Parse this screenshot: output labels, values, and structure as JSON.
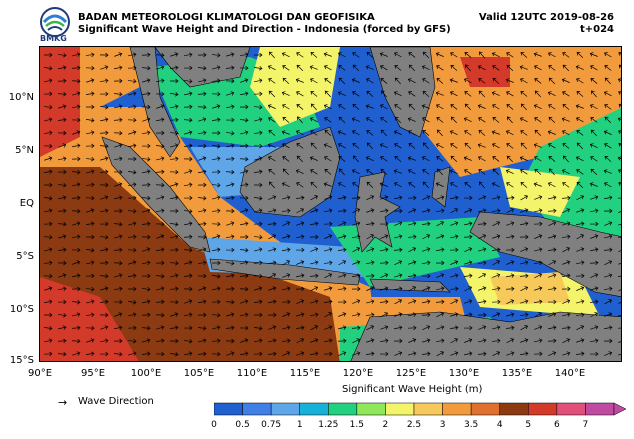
{
  "header": {
    "agency": "BADAN METEOROLOGI KLIMATOLOGI DAN GEOFISIKA",
    "subtitle": "Significant Wave Height and Direction - Indonesia (forced by GFS)",
    "valid": "Valid 12UTC 2019-08-26",
    "forecast": "t+024",
    "logo_text": "BMKG"
  },
  "map": {
    "lat_ticks": [
      "10°N",
      "5°N",
      "EQ",
      "5°S",
      "10°S",
      "15°S"
    ],
    "lon_ticks": [
      "90°E",
      "95°E",
      "100°E",
      "105°E",
      "110°E",
      "115°E",
      "120°E",
      "125°E",
      "130°E",
      "135°E",
      "140°E"
    ],
    "land_color": "#808080"
  },
  "legend": {
    "arrow_symbol": "→",
    "arrow_label": "Wave Direction"
  },
  "colorbar": {
    "title": "Significant Wave Height (m)",
    "ticks": [
      "0",
      "0.5",
      "0.75",
      "1",
      "1.25",
      "1.5",
      "2",
      "2.5",
      "3",
      "3.5",
      "4",
      "5",
      "6",
      "7"
    ],
    "colors": [
      "#1f5fcf",
      "#3f7fe6",
      "#5fa6e8",
      "#16b0d8",
      "#22d17f",
      "#8ee85a",
      "#f4f46a",
      "#f7c95a",
      "#f29b3d",
      "#e0702d",
      "#8b3a12",
      "#d43a2a",
      "#e0507a",
      "#c04aa0"
    ]
  }
}
